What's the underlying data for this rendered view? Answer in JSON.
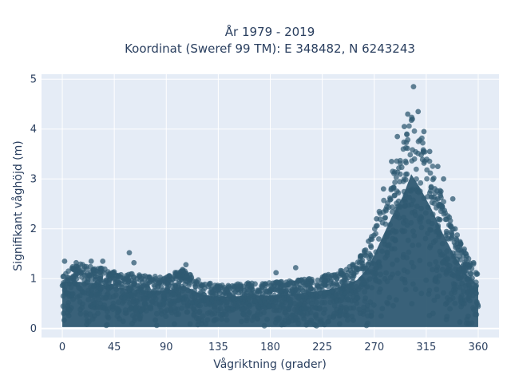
{
  "chart_data": {
    "type": "scatter",
    "title_line1": "År 1979 - 2019",
    "title_line2": "Koordinat (Sweref 99 TM): E 348482, N 6243243",
    "xlabel": "Vågriktning (grader)",
    "ylabel": "Signifikant våghöjd (m)",
    "xlim": [
      -18,
      378
    ],
    "ylim": [
      -0.18,
      5.1
    ],
    "x_ticks": [
      0,
      45,
      90,
      135,
      180,
      225,
      270,
      315,
      360
    ],
    "y_ticks": [
      0,
      1,
      2,
      3,
      4,
      5
    ],
    "grid": true,
    "marker_color": "#2f5a72",
    "background_color": "#e5ecf6",
    "envelope": [
      {
        "x": 0,
        "y": 1.3
      },
      {
        "x": 15,
        "y": 1.3
      },
      {
        "x": 30,
        "y": 1.25
      },
      {
        "x": 45,
        "y": 1.15
      },
      {
        "x": 60,
        "y": 1.1
      },
      {
        "x": 75,
        "y": 1.05
      },
      {
        "x": 90,
        "y": 1.05
      },
      {
        "x": 105,
        "y": 1.2
      },
      {
        "x": 120,
        "y": 0.95
      },
      {
        "x": 135,
        "y": 0.88
      },
      {
        "x": 150,
        "y": 0.9
      },
      {
        "x": 165,
        "y": 0.92
      },
      {
        "x": 180,
        "y": 0.92
      },
      {
        "x": 195,
        "y": 0.95
      },
      {
        "x": 210,
        "y": 1.0
      },
      {
        "x": 225,
        "y": 1.05
      },
      {
        "x": 240,
        "y": 1.15
      },
      {
        "x": 255,
        "y": 1.35
      },
      {
        "x": 265,
        "y": 1.7
      },
      {
        "x": 275,
        "y": 2.4
      },
      {
        "x": 285,
        "y": 3.1
      },
      {
        "x": 295,
        "y": 3.7
      },
      {
        "x": 302,
        "y": 4.3
      },
      {
        "x": 310,
        "y": 3.9
      },
      {
        "x": 320,
        "y": 3.3
      },
      {
        "x": 330,
        "y": 2.6
      },
      {
        "x": 340,
        "y": 2.0
      },
      {
        "x": 350,
        "y": 1.5
      },
      {
        "x": 360,
        "y": 1.2
      }
    ],
    "outliers": [
      {
        "x": 2,
        "y": 1.35
      },
      {
        "x": 12,
        "y": 1.32
      },
      {
        "x": 25,
        "y": 1.35
      },
      {
        "x": 35,
        "y": 1.35
      },
      {
        "x": 58,
        "y": 1.52
      },
      {
        "x": 62,
        "y": 1.32
      },
      {
        "x": 107,
        "y": 1.28
      },
      {
        "x": 185,
        "y": 1.12
      },
      {
        "x": 202,
        "y": 1.22
      },
      {
        "x": 258,
        "y": 1.45
      },
      {
        "x": 265,
        "y": 1.75
      },
      {
        "x": 272,
        "y": 2.2
      },
      {
        "x": 278,
        "y": 2.8
      },
      {
        "x": 285,
        "y": 3.35
      },
      {
        "x": 290,
        "y": 3.85
      },
      {
        "x": 296,
        "y": 4.05
      },
      {
        "x": 299,
        "y": 4.3
      },
      {
        "x": 303,
        "y": 4.2
      },
      {
        "x": 304,
        "y": 4.85
      },
      {
        "x": 308,
        "y": 4.35
      },
      {
        "x": 313,
        "y": 3.95
      },
      {
        "x": 318,
        "y": 3.55
      },
      {
        "x": 325,
        "y": 3.25
      },
      {
        "x": 330,
        "y": 3.0
      },
      {
        "x": 338,
        "y": 2.6
      },
      {
        "x": 340,
        "y": 2.0
      },
      {
        "x": 345,
        "y": 1.7
      },
      {
        "x": 350,
        "y": 1.45
      },
      {
        "x": 356,
        "y": 1.32
      }
    ]
  }
}
